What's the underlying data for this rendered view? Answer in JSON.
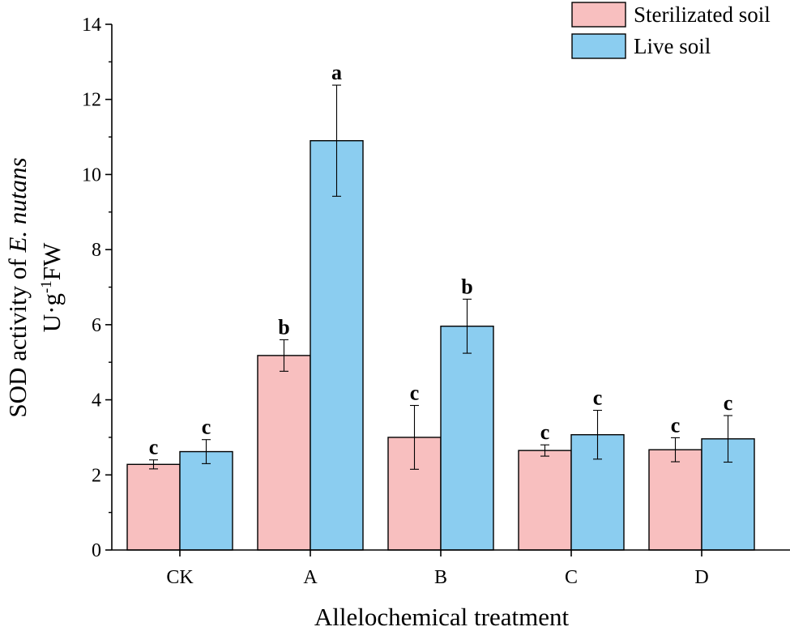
{
  "chart_data": {
    "type": "bar",
    "xlabel": "Allelochemical treatment",
    "ylabel_line1_prefix": "SOD activity of ",
    "ylabel_line1_italic": "E. nutans",
    "ylabel_line2_base": "U·g",
    "ylabel_line2_sup": "-1",
    "ylabel_line2_suffix": "FW",
    "ylim": [
      0,
      14
    ],
    "yticks": [
      0,
      2,
      4,
      6,
      8,
      10,
      12,
      14
    ],
    "categories": [
      "CK",
      "A",
      "B",
      "C",
      "D"
    ],
    "series": [
      {
        "name": "Sterilizated soil",
        "color": "#F8BFBF",
        "values": [
          2.28,
          5.18,
          3.0,
          2.65,
          2.67
        ],
        "errors": [
          0.12,
          0.42,
          0.85,
          0.15,
          0.32
        ],
        "labels": [
          "c",
          "b",
          "c",
          "c",
          "c"
        ]
      },
      {
        "name": "Live soil",
        "color": "#8BCDF0",
        "values": [
          2.62,
          10.9,
          5.96,
          3.07,
          2.96
        ],
        "errors": [
          0.32,
          1.48,
          0.72,
          0.65,
          0.62
        ],
        "labels": [
          "c",
          "a",
          "b",
          "c",
          "c"
        ]
      }
    ],
    "legend_position": "top-right"
  }
}
